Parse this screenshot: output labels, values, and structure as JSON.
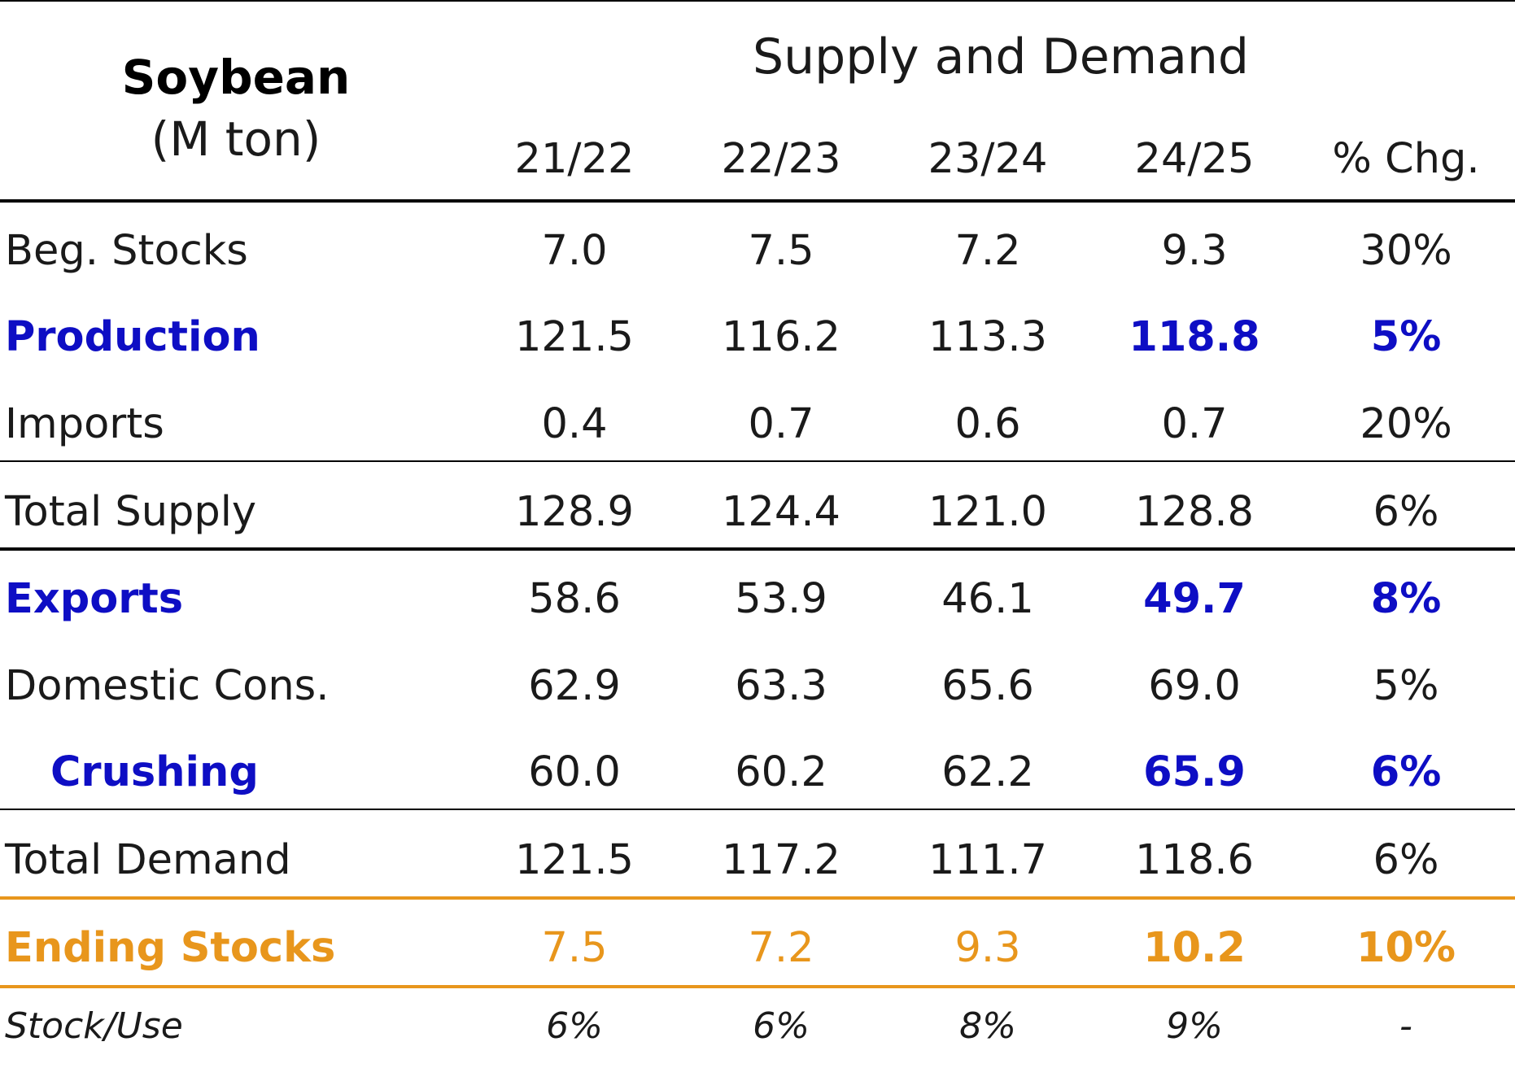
{
  "header": {
    "commodity": "Soybean",
    "unit": "(M ton)",
    "section_title": "Supply and Demand",
    "columns": [
      "21/22",
      "22/23",
      "23/24",
      "24/25",
      "% Chg."
    ]
  },
  "rows": [
    {
      "label": "Beg. Stocks",
      "values": [
        "7.0",
        "7.5",
        "7.2",
        "9.3",
        "30%"
      ]
    },
    {
      "label": "Production",
      "values": [
        "121.5",
        "116.2",
        "113.3",
        "118.8",
        "5%"
      ]
    },
    {
      "label": "Imports",
      "values": [
        "0.4",
        "0.7",
        "0.6",
        "0.7",
        "20%"
      ]
    },
    {
      "label": "Total Supply",
      "values": [
        "128.9",
        "124.4",
        "121.0",
        "128.8",
        "6%"
      ]
    },
    {
      "label": "Exports",
      "values": [
        "58.6",
        "53.9",
        "46.1",
        "49.7",
        "8%"
      ]
    },
    {
      "label": "Domestic Cons.",
      "values": [
        "62.9",
        "63.3",
        "65.6",
        "69.0",
        "5%"
      ]
    },
    {
      "label": "Crushing",
      "values": [
        "60.0",
        "60.2",
        "62.2",
        "65.9",
        "6%"
      ]
    },
    {
      "label": "Total Demand",
      "values": [
        "121.5",
        "117.2",
        "111.7",
        "118.6",
        "6%"
      ]
    },
    {
      "label": "Ending Stocks",
      "values": [
        "7.5",
        "7.2",
        "9.3",
        "10.2",
        "10%"
      ]
    },
    {
      "label": "Stock/Use",
      "values": [
        "6%",
        "6%",
        "8%",
        "9%",
        "-"
      ]
    }
  ],
  "colors": {
    "highlight_blue": "#0e0ec4",
    "highlight_orange": "#e8961c"
  }
}
